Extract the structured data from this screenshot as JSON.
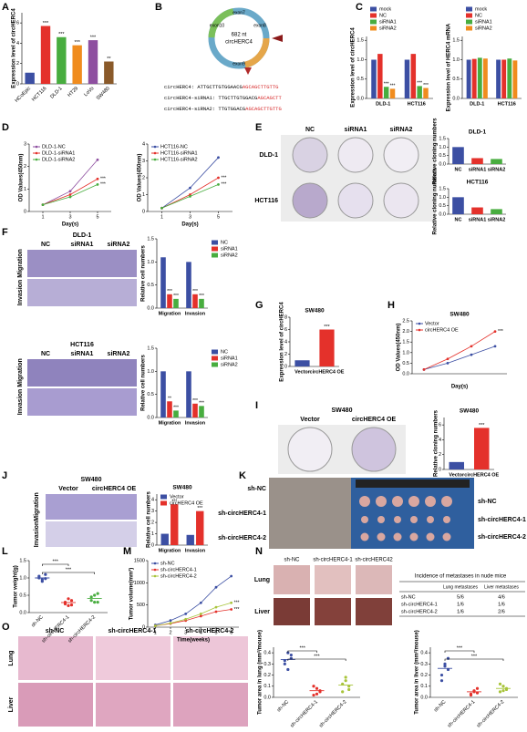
{
  "panel_labels": [
    "A",
    "B",
    "C",
    "D",
    "E",
    "F",
    "G",
    "H",
    "I",
    "J",
    "K",
    "L",
    "M",
    "N",
    "O"
  ],
  "B": {
    "center": [
      "682 nt",
      "circHERC4"
    ],
    "exons": [
      "exon7",
      "exon8",
      "exon9",
      "exon10"
    ],
    "sequences": [
      {
        "name": "circHERC4:",
        "black": "ATTGCTTGTGGAACG",
        "red": "AGCAGCTTGTTG"
      },
      {
        "name": "circHERC4-siRNA1:",
        "black": "TTGCTTGTGGACG",
        "red": "AGCAGCTT"
      },
      {
        "name": "circHERC4-siRNA2:",
        "black": "TTGTGGACG",
        "red": "AGCAGCTTGTTG"
      }
    ]
  },
  "E": {
    "columns": [
      "NC",
      "siRNA1",
      "siRNA2"
    ],
    "rows": [
      "DLD-1",
      "HCT116"
    ]
  },
  "F": {
    "blocks": [
      {
        "title": "DLD-1",
        "columns": [
          "NC",
          "siRNA1",
          "siRNA2"
        ],
        "rows": [
          "Migration",
          "Invasion"
        ]
      },
      {
        "title": "HCT116",
        "columns": [
          "NC",
          "siRNA1",
          "siRNA2"
        ],
        "rows": [
          "Migration",
          "Invasion"
        ]
      }
    ]
  },
  "I": {
    "title": "SW480",
    "columns": [
      "Vector",
      "circHERC4 OE"
    ]
  },
  "J": {
    "title": "SW480",
    "columns": [
      "Vector",
      "circHERC4 OE"
    ],
    "rows": [
      "Migration",
      "Invasion"
    ]
  },
  "K": {
    "rows": [
      "sh-NC",
      "sh-circHERC4-1",
      "sh-circHERC4-2"
    ]
  },
  "N": {
    "columns": [
      "sh-NC",
      "sh-circHERC4-1",
      "sh-circHERC42"
    ],
    "rows": [
      "Lung",
      "Liver"
    ],
    "table": {
      "title": "Incidence of metastases in nude mice",
      "header": [
        "Lung metastases",
        "Liver metastases"
      ],
      "rows": [
        [
          "sh-NC",
          "5/6",
          "4/6"
        ],
        [
          "sh-circHERC4-1",
          "1/6",
          "1/6"
        ],
        [
          "sh-circHERC4-2",
          "1/6",
          "2/6"
        ]
      ]
    }
  },
  "O": {
    "columns": [
      "sh-NC",
      "sh-circHERC4-1",
      "sh-circHERC4-2"
    ],
    "rows": [
      "Lung",
      "Liver"
    ]
  },
  "charts": [
    {
      "type": "bar",
      "ylabel": "Expression level of circHERC4",
      "ylim": [
        0,
        7
      ],
      "yticks": [
        0,
        2,
        4,
        6
      ],
      "categories": [
        "HCoEpic",
        "HCT116",
        "DLD-1",
        "HT29",
        "LoVo",
        "SW480"
      ],
      "values": [
        1.1,
        5.7,
        4.6,
        3.8,
        4.3,
        2.2
      ],
      "colors": [
        "#3c4fa3",
        "#e4312b",
        "#48ad3f",
        "#f08c1e",
        "#8e4fa0",
        "#8a5a2a"
      ],
      "stars": [
        null,
        "***",
        "***",
        "***",
        "***",
        "**"
      ],
      "rotate_labels": true
    },
    {
      "type": "bar",
      "ylabel": "Expression level of circHERC4",
      "ylim": [
        0,
        1.6
      ],
      "yticks": [
        {
          "value": 0,
          "label": "0.0"
        },
        {
          "value": 0.5,
          "label": "0.5"
        },
        {
          "value": 1,
          "label": "1.0"
        },
        {
          "value": 1.5,
          "label": "1.5"
        }
      ],
      "categories": [
        "DLD-1",
        "HCT116"
      ],
      "legend": "above",
      "series": [
        {
          "name": "mock",
          "color": "#3c4fa3",
          "values": [
            1.0,
            1.0
          ]
        },
        {
          "name": "NC",
          "color": "#e4312b",
          "values": [
            1.15,
            1.15
          ]
        },
        {
          "name": "siRNA1",
          "color": "#48ad3f",
          "values": [
            0.3,
            0.32
          ],
          "stars": [
            "***",
            "***"
          ]
        },
        {
          "name": "siRNA2",
          "color": "#f08c1e",
          "values": [
            0.25,
            0.27
          ],
          "stars": [
            "***",
            "***"
          ]
        }
      ]
    },
    {
      "type": "bar",
      "ylabel": "Expression level of HERC4 mRNA",
      "ylim": [
        0,
        1.6
      ],
      "yticks": [
        {
          "value": 0,
          "label": "0.0"
        },
        {
          "value": 0.5,
          "label": "0.5"
        },
        {
          "value": 1,
          "label": "1.0"
        },
        {
          "value": 1.5,
          "label": "1.5"
        }
      ],
      "categories": [
        "DLD-1",
        "HCT116"
      ],
      "legend": "above",
      "series": [
        {
          "name": "mock",
          "color": "#3c4fa3",
          "values": [
            1.0,
            1.0
          ]
        },
        {
          "name": "NC",
          "color": "#e4312b",
          "values": [
            1.02,
            1.0
          ]
        },
        {
          "name": "siRNA1",
          "color": "#48ad3f",
          "values": [
            1.05,
            1.03
          ]
        },
        {
          "name": "siRNA2",
          "color": "#f08c1e",
          "values": [
            1.03,
            0.98
          ]
        }
      ]
    },
    {
      "type": "line",
      "xlabel": "Day(s)",
      "ylabel": "OD Values(450nm)",
      "x": [
        1,
        3,
        5
      ],
      "xlim": [
        0,
        6
      ],
      "xticks": [
        1,
        3,
        5
      ],
      "ylim": [
        0,
        3
      ],
      "yticks": [
        0,
        1,
        2,
        3
      ],
      "legend": "top-left",
      "series": [
        {
          "name": "DLD-1-NC",
          "color": "#8e4fa0",
          "values": [
            0.3,
            0.9,
            2.3
          ]
        },
        {
          "name": "DLD-1-siRNA1",
          "color": "#e4312b",
          "values": [
            0.3,
            0.75,
            1.45
          ],
          "star": "***"
        },
        {
          "name": "DLD-1-siRNA2",
          "color": "#48ad3f",
          "values": [
            0.3,
            0.65,
            1.2
          ],
          "star": "***"
        }
      ]
    },
    {
      "type": "line",
      "xlabel": "Day(s)",
      "ylabel": "OD Values(450nm)",
      "x": [
        1,
        3,
        5
      ],
      "xlim": [
        0,
        6
      ],
      "xticks": [
        1,
        3,
        5
      ],
      "ylim": [
        0,
        4
      ],
      "yticks": [
        0,
        1,
        2,
        3,
        4
      ],
      "legend": "top-left",
      "series": [
        {
          "name": "HCT116-NC",
          "color": "#3c4fa3",
          "values": [
            0.2,
            1.4,
            3.2
          ]
        },
        {
          "name": "HCT116-siRNA1",
          "color": "#e4312b",
          "values": [
            0.2,
            1.0,
            2.0
          ],
          "star": "***"
        },
        {
          "name": "HCT116-siRNA2",
          "color": "#48ad3f",
          "values": [
            0.2,
            0.9,
            1.6
          ],
          "star": "***"
        }
      ]
    },
    {
      "type": "bar",
      "title": "DLD-1",
      "ylabel": "Relative cloning numbers",
      "ylim": [
        0,
        1.5
      ],
      "yticks": [
        {
          "value": 0,
          "label": "0.0"
        },
        {
          "value": 0.5,
          "label": "0.5"
        },
        {
          "value": 1,
          "label": "1.0"
        },
        {
          "value": 1.5,
          "label": "1.5"
        }
      ],
      "categories": [
        "NC",
        "siRNA1",
        "siRNA2"
      ],
      "values": [
        1.0,
        0.35,
        0.3
      ],
      "colors": [
        "#3c4fa3",
        "#e4312b",
        "#48ad3f"
      ]
    },
    {
      "type": "bar",
      "title": "HCT116",
      "ylabel": "Relative cloning numbers",
      "ylim": [
        0,
        1.5
      ],
      "yticks": [
        {
          "value": 0,
          "label": "0.0"
        },
        {
          "value": 0.5,
          "label": "0.5"
        },
        {
          "value": 1,
          "label": "1.0"
        },
        {
          "value": 1.5,
          "label": "1.5"
        }
      ],
      "categories": [
        "NC",
        "siRNA1",
        "siRNA2"
      ],
      "values": [
        1.0,
        0.4,
        0.3
      ],
      "colors": [
        "#3c4fa3",
        "#e4312b",
        "#48ad3f"
      ]
    },
    {
      "type": "bar",
      "ylabel": "Relative cell numbers",
      "ylim": [
        0,
        1.5
      ],
      "yticks": [
        {
          "value": 0,
          "label": "0.0"
        },
        {
          "value": 0.5,
          "label": "0.5"
        },
        {
          "value": 1,
          "label": "1.0"
        },
        {
          "value": 1.5,
          "label": "1.5"
        }
      ],
      "categories": [
        "Migration",
        "Invasion"
      ],
      "legend": "right",
      "series": [
        {
          "name": "NC",
          "color": "#3c4fa3",
          "values": [
            1.1,
            1.0
          ]
        },
        {
          "name": "siRNA1",
          "color": "#e4312b",
          "values": [
            0.3,
            0.3
          ],
          "stars": [
            "***",
            "***"
          ]
        },
        {
          "name": "siRNA2",
          "color": "#48ad3f",
          "values": [
            0.2,
            0.2
          ],
          "stars": [
            "***",
            "***"
          ]
        }
      ]
    },
    {
      "type": "bar",
      "ylabel": "Relative cell numbers",
      "ylim": [
        0,
        1.5
      ],
      "yticks": [
        {
          "value": 0,
          "label": "0.0"
        },
        {
          "value": 0.5,
          "label": "0.5"
        },
        {
          "value": 1,
          "label": "1.0"
        },
        {
          "value": 1.5,
          "label": "1.5"
        }
      ],
      "categories": [
        "Migration",
        "Invasion"
      ],
      "legend": "right",
      "series": [
        {
          "name": "NC",
          "color": "#3c4fa3",
          "values": [
            1.0,
            1.0
          ]
        },
        {
          "name": "siRNA1",
          "color": "#e4312b",
          "values": [
            0.35,
            0.3
          ],
          "stars": [
            "**",
            "***"
          ]
        },
        {
          "name": "siRNA2",
          "color": "#48ad3f",
          "values": [
            0.15,
            0.25
          ],
          "stars": [
            "***",
            "***"
          ]
        }
      ]
    },
    {
      "type": "bar",
      "title": "SW480",
      "ylabel": "Expression level of circHERC4",
      "ylim": [
        0,
        8
      ],
      "yticks": [
        0,
        2,
        4,
        6,
        8
      ],
      "categories": [
        "Vector",
        "circHERC4 OE"
      ],
      "values": [
        1.0,
        6.0
      ],
      "colors": [
        "#3c4fa3",
        "#e4312b"
      ],
      "stars": [
        null,
        "***"
      ]
    },
    {
      "type": "line",
      "title": "SW480",
      "xlabel": "Day(s)",
      "ylabel": "OD Values(450nm)",
      "x": [
        1,
        2,
        3,
        4
      ],
      "xlim": [
        0.5,
        4.5
      ],
      "xticks": [],
      "ylim": [
        0,
        2.5
      ],
      "yticks": [
        {
          "value": 0,
          "label": "0.0"
        },
        {
          "value": 0.5,
          "label": "0.5"
        },
        {
          "value": 1,
          "label": "1.0"
        },
        {
          "value": 1.5,
          "label": "1.5"
        },
        {
          "value": 2,
          "label": "2.0"
        },
        {
          "value": 2.5,
          "label": "2.5"
        }
      ],
      "legend": "top-left",
      "series": [
        {
          "name": "Vector",
          "color": "#3c4fa3",
          "values": [
            0.2,
            0.5,
            0.9,
            1.3
          ]
        },
        {
          "name": "circHERC4 OE",
          "color": "#e4312b",
          "values": [
            0.2,
            0.7,
            1.3,
            2.0
          ],
          "star": "***"
        }
      ]
    },
    {
      "type": "bar",
      "title": "SW480",
      "ylabel": "Relative cloning numbers",
      "ylim": [
        0,
        7
      ],
      "yticks": [
        0,
        2,
        4,
        6
      ],
      "categories": [
        "Vector",
        "circHERC4 OE"
      ],
      "values": [
        1.0,
        5.6
      ],
      "colors": [
        "#3c4fa3",
        "#e4312b"
      ],
      "stars": [
        null,
        "***"
      ]
    },
    {
      "type": "bar",
      "title": "SW480",
      "ylabel": "Relative cell numbers",
      "ylim": [
        0,
        4.5
      ],
      "yticks": [
        0,
        1,
        2,
        3,
        4
      ],
      "categories": [
        "Migration",
        "Invasion"
      ],
      "legend": "top-left",
      "series": [
        {
          "name": "Vector",
          "color": "#3c4fa3",
          "values": [
            1.0,
            0.9
          ]
        },
        {
          "name": "circHERC4 OE",
          "color": "#e4312b",
          "values": [
            3.6,
            3.0
          ],
          "stars": [
            "***",
            "***"
          ]
        }
      ]
    },
    {
      "type": "dot",
      "ylabel": "Tumor weight(g)",
      "ylim": [
        0,
        1.5
      ],
      "yticks": [
        {
          "value": 0,
          "label": "0.0"
        },
        {
          "value": 0.5,
          "label": "0.5"
        },
        {
          "value": 1,
          "label": "1.0"
        },
        {
          "value": 1.5,
          "label": "1.5"
        }
      ],
      "categories": [
        "sh-NC",
        "sh-circHERC4-1",
        "sh-circHERC4-2"
      ],
      "colors": [
        "#3c4fa3",
        "#e4312b",
        "#48ad3f"
      ],
      "points": [
        [
          1.0,
          0.9,
          1.1,
          1.05,
          0.95,
          0.98
        ],
        [
          0.3,
          0.2,
          0.35,
          0.25,
          0.4,
          0.22
        ],
        [
          0.45,
          0.3,
          0.55,
          0.35,
          0.5,
          0.3
        ]
      ],
      "means": [
        1.0,
        0.29,
        0.41
      ],
      "comparisons": [
        {
          "pair": [
            0,
            1
          ],
          "label": "***"
        },
        {
          "pair": [
            0,
            2
          ],
          "label": "***"
        }
      ],
      "rotate_labels": true
    },
    {
      "type": "line",
      "xlabel": "Time(weeks)",
      "ylabel": "Tumor volume(mm³)",
      "x": [
        1,
        2,
        3,
        4,
        5,
        6
      ],
      "xlim": [
        0.5,
        6.5
      ],
      "xticks": [
        1,
        2,
        3,
        4,
        5,
        6
      ],
      "ylim": [
        0,
        1500
      ],
      "yticks": [
        0,
        500,
        1000,
        1500
      ],
      "legend": "top-left",
      "series": [
        {
          "name": "sh-NC",
          "color": "#3c4fa3",
          "values": [
            50,
            150,
            300,
            550,
            900,
            1150
          ]
        },
        {
          "name": "sh-circHERC4-1",
          "color": "#e4312b",
          "values": [
            30,
            80,
            150,
            250,
            350,
            400
          ],
          "star": "***"
        },
        {
          "name": "sh-circHERC4-2",
          "color": "#a8c43a",
          "values": [
            30,
            90,
            180,
            300,
            450,
            550
          ],
          "star": "***"
        }
      ]
    },
    {
      "type": "dot",
      "ylabel": "Tumor area in lung (mm²/mouse)",
      "ylim": [
        0,
        0.45
      ],
      "yticks": [
        {
          "value": 0,
          "label": "0.0"
        },
        0.1,
        0.2,
        0.3,
        0.4
      ],
      "categories": [
        "sh-NC",
        "sh-circHERC4-1",
        "sh-circHERC4-2"
      ],
      "colors": [
        "#3c4fa3",
        "#e4312b",
        "#a8c43a"
      ],
      "points": [
        [
          0.33,
          0.25,
          0.38,
          0.3,
          0.4,
          0.35
        ],
        [
          0.02,
          0.08,
          0.05,
          0.1,
          0.03,
          0.06
        ],
        [
          0.05,
          0.15,
          0.1,
          0.12,
          0.18,
          0.07
        ]
      ],
      "means": [
        0.34,
        0.06,
        0.11
      ],
      "comparisons": [
        {
          "pair": [
            0,
            1
          ],
          "label": "***"
        },
        {
          "pair": [
            0,
            2
          ],
          "label": "***"
        }
      ],
      "rotate_labels": true
    },
    {
      "type": "dot",
      "ylabel": "Tumor area in liver (mm²/mouse)",
      "ylim": [
        0,
        0.45
      ],
      "yticks": [
        {
          "value": 0,
          "label": "0.0"
        },
        0.1,
        0.2,
        0.3,
        0.4
      ],
      "categories": [
        "sh-NC",
        "sh-circHERC4-1",
        "sh-circHERC4-2"
      ],
      "colors": [
        "#3c4fa3",
        "#e4312b",
        "#a8c43a"
      ],
      "points": [
        [
          0.2,
          0.3,
          0.35,
          0.15,
          0.28,
          0.25
        ],
        [
          0.02,
          0.05,
          0.08,
          0.03,
          0.06,
          0.04
        ],
        [
          0.05,
          0.1,
          0.08,
          0.12,
          0.06,
          0.07
        ]
      ],
      "means": [
        0.26,
        0.05,
        0.08
      ],
      "comparisons": [
        {
          "pair": [
            0,
            1
          ],
          "label": "***"
        },
        {
          "pair": [
            0,
            2
          ],
          "label": "***"
        }
      ],
      "rotate_labels": true
    }
  ]
}
